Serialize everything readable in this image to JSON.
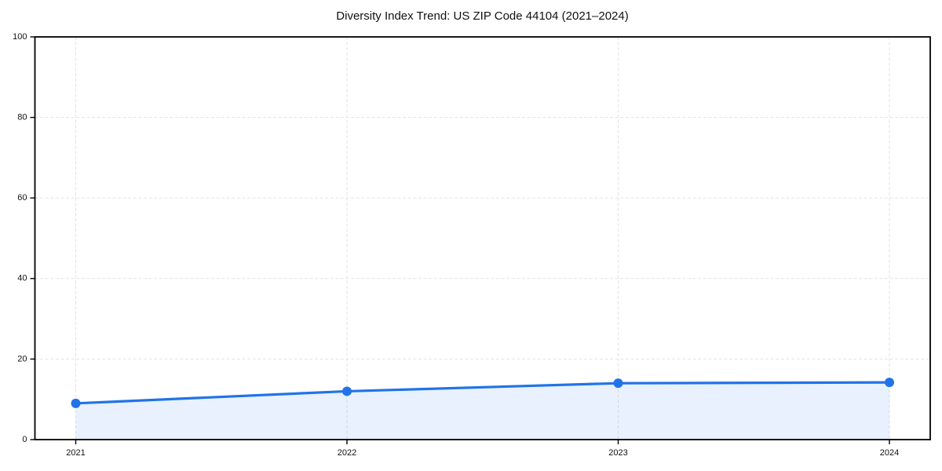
{
  "title": "Diversity Index Trend: US ZIP Code 44104 (2021–2024)",
  "chart_data": {
    "type": "line",
    "categories": [
      "2021",
      "2022",
      "2023",
      "2024"
    ],
    "series": [
      {
        "name": "Diversity Index",
        "values": [
          9,
          12,
          14,
          14.2
        ]
      }
    ],
    "title": "Diversity Index Trend: US ZIP Code 44104 (2021–2024)",
    "xlabel": "",
    "ylabel": "",
    "ylim": [
      0,
      100
    ],
    "yticks": [
      0,
      20,
      40,
      60,
      80,
      100
    ],
    "grid": true,
    "grid_style": "dashed",
    "legend_position": "none",
    "marker": "circle",
    "area_fill": true,
    "boxed_axes": true
  },
  "colors": {
    "line": "#2173e8",
    "marker": "#2173e8",
    "area_fill": "rgba(33, 115, 232, 0.10)",
    "grid": "#e3e3e3",
    "axis": "#000000",
    "tick_text": "#111111",
    "title_text": "#111111",
    "background": "#ffffff"
  }
}
